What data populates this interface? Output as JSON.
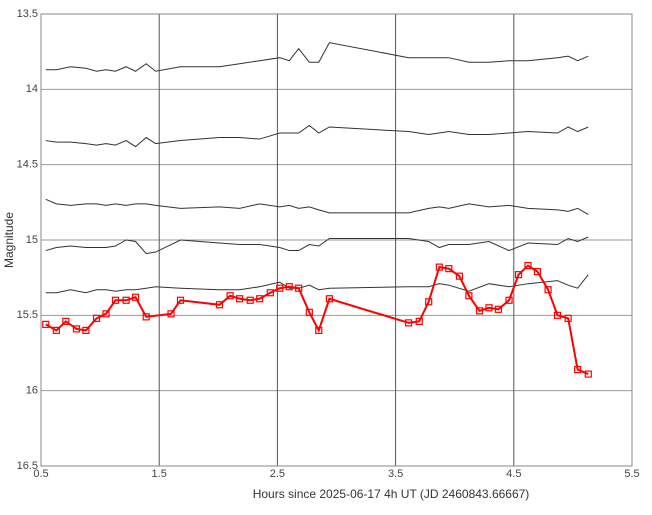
{
  "chart_data": {
    "type": "line",
    "xlabel": "Hours since 2025-06-17 4h UT (JD 2460843.66667)",
    "ylabel": "Magnitude",
    "xlim": [
      0.5,
      5.5
    ],
    "xticks": [
      0.5,
      1.5,
      2.5,
      3.5,
      4.5,
      5.5
    ],
    "ylim": [
      13.5,
      16.5
    ],
    "yticks": [
      13.5,
      14,
      14.5,
      15,
      15.5,
      16,
      16.5
    ],
    "y_inverted": true,
    "grid": true,
    "series": [
      {
        "color": "#333333",
        "marker": false,
        "x": [
          0.54,
          0.63,
          0.75,
          0.88,
          0.97,
          1.05,
          1.13,
          1.22,
          1.3,
          1.39,
          1.47,
          1.68,
          2.01,
          2.18,
          2.35,
          2.52,
          2.6,
          2.68,
          2.77,
          2.85,
          2.94,
          3.61,
          3.78,
          3.87,
          3.95,
          4.12,
          4.29,
          4.46,
          4.62,
          4.87,
          4.96,
          5.04,
          5.13
        ],
        "values": [
          13.87,
          13.87,
          13.85,
          13.86,
          13.88,
          13.87,
          13.88,
          13.85,
          13.88,
          13.83,
          13.88,
          13.85,
          13.85,
          13.83,
          13.81,
          13.79,
          13.81,
          13.73,
          13.82,
          13.82,
          13.69,
          13.79,
          13.79,
          13.79,
          13.79,
          13.82,
          13.82,
          13.81,
          13.81,
          13.79,
          13.78,
          13.81,
          13.78
        ]
      },
      {
        "color": "#333333",
        "marker": false,
        "x": [
          0.54,
          0.63,
          0.75,
          0.88,
          0.97,
          1.05,
          1.13,
          1.22,
          1.3,
          1.39,
          1.47,
          1.68,
          2.01,
          2.18,
          2.35,
          2.52,
          2.6,
          2.68,
          2.77,
          2.85,
          2.94,
          3.61,
          3.78,
          3.87,
          3.95,
          4.12,
          4.29,
          4.46,
          4.62,
          4.87,
          4.96,
          5.04,
          5.13
        ],
        "values": [
          14.34,
          14.35,
          14.35,
          14.36,
          14.37,
          14.36,
          14.37,
          14.34,
          14.38,
          14.32,
          14.36,
          14.34,
          14.32,
          14.32,
          14.33,
          14.29,
          14.29,
          14.29,
          14.24,
          14.29,
          14.25,
          14.28,
          14.3,
          14.29,
          14.28,
          14.3,
          14.3,
          14.29,
          14.28,
          14.29,
          14.25,
          14.28,
          14.25
        ]
      },
      {
        "color": "#333333",
        "marker": false,
        "x": [
          0.54,
          0.63,
          0.75,
          0.88,
          0.97,
          1.05,
          1.13,
          1.22,
          1.3,
          1.39,
          1.47,
          1.68,
          2.01,
          2.18,
          2.35,
          2.52,
          2.6,
          2.68,
          2.77,
          2.85,
          2.94,
          3.61,
          3.78,
          3.87,
          3.95,
          4.12,
          4.29,
          4.46,
          4.62,
          4.87,
          4.96,
          5.04,
          5.13
        ],
        "values": [
          14.73,
          14.76,
          14.77,
          14.76,
          14.76,
          14.77,
          14.76,
          14.77,
          14.76,
          14.76,
          14.77,
          14.79,
          14.78,
          14.79,
          14.76,
          14.78,
          14.77,
          14.79,
          14.78,
          14.8,
          14.82,
          14.82,
          14.79,
          14.78,
          14.79,
          14.76,
          14.78,
          14.77,
          14.79,
          14.8,
          14.81,
          14.79,
          14.83
        ]
      },
      {
        "color": "#333333",
        "marker": false,
        "x": [
          0.54,
          0.63,
          0.75,
          0.88,
          0.97,
          1.05,
          1.13,
          1.22,
          1.3,
          1.39,
          1.47,
          1.68,
          2.01,
          2.18,
          2.35,
          2.52,
          2.6,
          2.68,
          2.77,
          2.85,
          2.94,
          3.61,
          3.78,
          3.87,
          3.95,
          4.12,
          4.29,
          4.46,
          4.62,
          4.87,
          4.96,
          5.04,
          5.13
        ],
        "values": [
          15.07,
          15.05,
          15.04,
          15.05,
          15.05,
          15.05,
          15.04,
          15.0,
          15.01,
          15.09,
          15.08,
          15.0,
          15.02,
          15.03,
          15.03,
          15.05,
          15.07,
          15.07,
          15.03,
          15.04,
          14.99,
          14.99,
          15.01,
          15.05,
          15.03,
          15.03,
          15.01,
          15.07,
          15.02,
          15.03,
          14.99,
          15.01,
          14.98
        ]
      },
      {
        "color": "#333333",
        "marker": false,
        "x": [
          0.54,
          0.63,
          0.75,
          0.88,
          0.97,
          1.05,
          1.13,
          1.22,
          1.3,
          1.39,
          1.47,
          1.68,
          2.01,
          2.18,
          2.35,
          2.52,
          2.6,
          2.68,
          2.77,
          2.85,
          2.94,
          3.61,
          3.78,
          3.87,
          3.95,
          4.12,
          4.29,
          4.46,
          4.62,
          4.87,
          4.96,
          5.04,
          5.13
        ],
        "values": [
          15.35,
          15.35,
          15.33,
          15.35,
          15.33,
          15.33,
          15.34,
          15.33,
          15.33,
          15.32,
          15.31,
          15.32,
          15.33,
          15.33,
          15.31,
          15.28,
          15.32,
          15.32,
          15.3,
          15.33,
          15.32,
          15.31,
          15.31,
          15.29,
          15.3,
          15.34,
          15.29,
          15.31,
          15.29,
          15.27,
          15.3,
          15.32,
          15.23
        ]
      },
      {
        "color": "#ff0000",
        "marker": true,
        "x": [
          0.54,
          0.63,
          0.71,
          0.8,
          0.88,
          0.97,
          1.05,
          1.13,
          1.22,
          1.3,
          1.39,
          1.6,
          1.68,
          2.01,
          2.1,
          2.18,
          2.27,
          2.35,
          2.44,
          2.52,
          2.6,
          2.68,
          2.77,
          2.85,
          2.94,
          3.61,
          3.7,
          3.78,
          3.87,
          3.95,
          4.04,
          4.12,
          4.21,
          4.29,
          4.37,
          4.46,
          4.54,
          4.62,
          4.7,
          4.79,
          4.87,
          4.96,
          5.04,
          5.13
        ],
        "values": [
          15.56,
          15.6,
          15.54,
          15.59,
          15.6,
          15.52,
          15.49,
          15.4,
          15.4,
          15.38,
          15.51,
          15.49,
          15.4,
          15.43,
          15.37,
          15.39,
          15.4,
          15.39,
          15.35,
          15.32,
          15.31,
          15.32,
          15.48,
          15.6,
          15.39,
          15.55,
          15.54,
          15.41,
          15.18,
          15.19,
          15.24,
          15.37,
          15.47,
          15.45,
          15.46,
          15.4,
          15.23,
          15.17,
          15.21,
          15.33,
          15.5,
          15.52,
          15.86,
          15.89
        ]
      }
    ]
  }
}
